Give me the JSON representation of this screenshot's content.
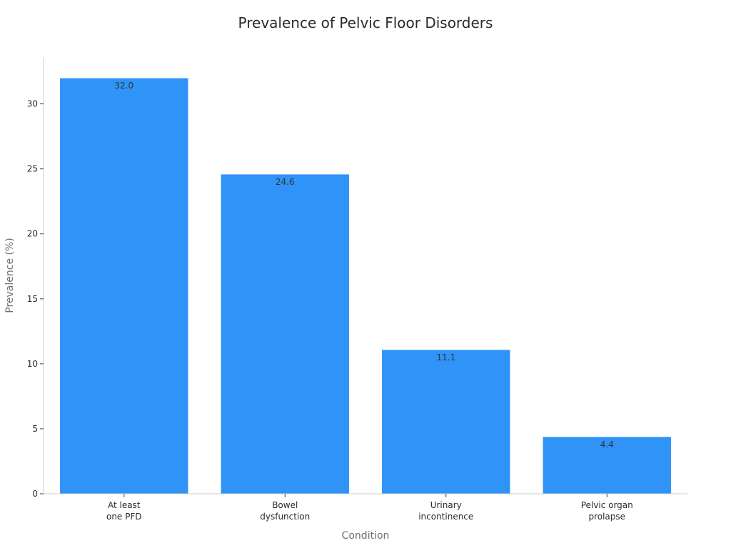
{
  "chart_data": {
    "type": "bar",
    "title": "Prevalence of Pelvic Floor Disorders",
    "xlabel": "Condition",
    "ylabel": "Prevalence (%)",
    "categories": [
      [
        "At least",
        "one PFD"
      ],
      [
        "Bowel",
        "dysfunction"
      ],
      [
        "Urinary",
        "incontinence"
      ],
      [
        "Pelvic organ",
        "prolapse"
      ]
    ],
    "values": [
      32.0,
      24.6,
      11.1,
      4.4
    ],
    "value_labels": [
      "32.0",
      "24.6",
      "11.1",
      "4.4"
    ],
    "ylim": [
      0,
      33.6
    ],
    "yticks": [
      0,
      5,
      10,
      15,
      20,
      25,
      30
    ],
    "grid": false,
    "colors": {
      "bar": "#2f93f8",
      "bar_edge": "#ffffff",
      "axis": "#cccccc"
    }
  }
}
